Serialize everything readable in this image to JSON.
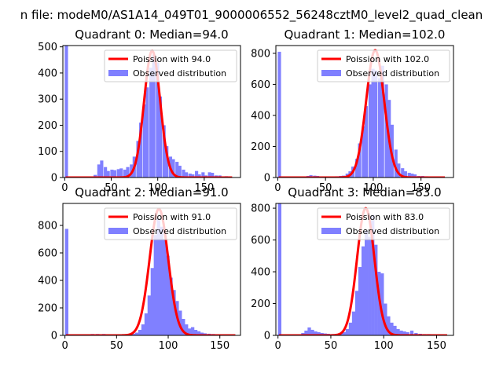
{
  "figure_title": "n file: modeM0/AS1A14_049T01_9000006552_56248cztM0_level2_quad_clean",
  "colors": {
    "observed": "#8080ff",
    "poisson": "#ff0000"
  },
  "chart_data": [
    {
      "type": "bar",
      "title": "Quadrant 0: Median=94.0",
      "median": 94.0,
      "xlim": [
        -2,
        189
      ],
      "ylim": [
        0,
        505
      ],
      "xticks": [
        0,
        50,
        100,
        150
      ],
      "yticks": [
        0,
        100,
        200,
        300,
        400,
        500
      ],
      "legend": [
        "Poission with 94.0",
        "Observed distribution"
      ],
      "bin_width": 3.5,
      "hist": [
        [
          0,
          505
        ],
        [
          31,
          10
        ],
        [
          35,
          50
        ],
        [
          38,
          65
        ],
        [
          42,
          40
        ],
        [
          45,
          25
        ],
        [
          49,
          30
        ],
        [
          52,
          28
        ],
        [
          56,
          32
        ],
        [
          59,
          35
        ],
        [
          63,
          30
        ],
        [
          66,
          40
        ],
        [
          70,
          50
        ],
        [
          73,
          80
        ],
        [
          77,
          140
        ],
        [
          80,
          210
        ],
        [
          84,
          280
        ],
        [
          87,
          345
        ],
        [
          91,
          420
        ],
        [
          94,
          470
        ],
        [
          98,
          440
        ],
        [
          101,
          310
        ],
        [
          105,
          200
        ],
        [
          108,
          120
        ],
        [
          112,
          80
        ],
        [
          115,
          70
        ],
        [
          119,
          60
        ],
        [
          122,
          45
        ],
        [
          126,
          30
        ],
        [
          129,
          20
        ],
        [
          133,
          15
        ],
        [
          136,
          12
        ],
        [
          140,
          25
        ],
        [
          143,
          12
        ],
        [
          147,
          20
        ],
        [
          150,
          8
        ],
        [
          154,
          20
        ],
        [
          157,
          18
        ],
        [
          161,
          8
        ],
        [
          165,
          8
        ],
        [
          172,
          5
        ]
      ],
      "poisson": {
        "mean": 94.0,
        "sd": 8.6,
        "peak": 485,
        "xmin": 1,
        "xmax": 180
      }
    },
    {
      "type": "bar",
      "title": "Quadrant 1: Median=102.0",
      "median": 102.0,
      "xlim": [
        -2,
        184
      ],
      "ylim": [
        0,
        850
      ],
      "xticks": [
        0,
        50,
        100,
        150
      ],
      "yticks": [
        0,
        200,
        400,
        600,
        800
      ],
      "legend": [
        "Poission with 102.0",
        "Observed distribution"
      ],
      "bin_width": 3.4,
      "hist": [
        [
          0,
          810
        ],
        [
          30,
          10
        ],
        [
          33,
          15
        ],
        [
          37,
          12
        ],
        [
          40,
          10
        ],
        [
          60,
          8
        ],
        [
          64,
          10
        ],
        [
          67,
          12
        ],
        [
          71,
          25
        ],
        [
          74,
          40
        ],
        [
          77,
          70
        ],
        [
          81,
          120
        ],
        [
          84,
          220
        ],
        [
          88,
          330
        ],
        [
          91,
          460
        ],
        [
          95,
          600
        ],
        [
          98,
          700
        ],
        [
          101,
          690
        ],
        [
          105,
          640
        ],
        [
          108,
          720
        ],
        [
          112,
          600
        ],
        [
          115,
          500
        ],
        [
          118,
          340
        ],
        [
          122,
          180
        ],
        [
          125,
          90
        ],
        [
          129,
          60
        ],
        [
          132,
          40
        ],
        [
          136,
          30
        ],
        [
          139,
          25
        ],
        [
          142,
          20
        ],
        [
          146,
          10
        ],
        [
          150,
          10
        ],
        [
          154,
          8
        ]
      ],
      "poisson": {
        "mean": 102.0,
        "sd": 9.4,
        "peak": 820,
        "xmin": 1,
        "xmax": 175
      }
    },
    {
      "type": "bar",
      "title": "Quadrant 2: Median=91.0",
      "median": 91.0,
      "xlim": [
        -2,
        170
      ],
      "ylim": [
        0,
        960
      ],
      "xticks": [
        0,
        50,
        100,
        150
      ],
      "yticks": [
        0,
        200,
        400,
        600,
        800
      ],
      "legend": [
        "Poission with 91.0",
        "Observed distribution"
      ],
      "bin_width": 3.3,
      "hist": [
        [
          0,
          775
        ],
        [
          25,
          10
        ],
        [
          30,
          10
        ],
        [
          36,
          10
        ],
        [
          40,
          8
        ],
        [
          52,
          8
        ],
        [
          60,
          10
        ],
        [
          65,
          12
        ],
        [
          68,
          20
        ],
        [
          71,
          40
        ],
        [
          74,
          80
        ],
        [
          77,
          160
        ],
        [
          80,
          290
        ],
        [
          83,
          490
        ],
        [
          86,
          730
        ],
        [
          89,
          850
        ],
        [
          92,
          790
        ],
        [
          95,
          700
        ],
        [
          98,
          580
        ],
        [
          101,
          420
        ],
        [
          104,
          330
        ],
        [
          107,
          250
        ],
        [
          110,
          180
        ],
        [
          113,
          120
        ],
        [
          116,
          80
        ],
        [
          119,
          50
        ],
        [
          122,
          60
        ],
        [
          125,
          40
        ],
        [
          128,
          30
        ],
        [
          131,
          20
        ],
        [
          134,
          15
        ],
        [
          138,
          12
        ],
        [
          142,
          10
        ],
        [
          146,
          8
        ],
        [
          150,
          8
        ]
      ],
      "poisson": {
        "mean": 91.0,
        "sd": 9.0,
        "peak": 920,
        "xmin": 1,
        "xmax": 165
      }
    },
    {
      "type": "bar",
      "title": "Quadrant 3: Median=83.0",
      "median": 83.0,
      "xlim": [
        -2,
        166
      ],
      "ylim": [
        0,
        830
      ],
      "xticks": [
        0,
        50,
        100,
        150
      ],
      "yticks": [
        0,
        200,
        400,
        600,
        800
      ],
      "legend": [
        "Poission with 83.0",
        "Observed distribution"
      ],
      "bin_width": 3.2,
      "hist": [
        [
          0,
          830
        ],
        [
          22,
          15
        ],
        [
          25,
          30
        ],
        [
          28,
          50
        ],
        [
          31,
          35
        ],
        [
          34,
          25
        ],
        [
          37,
          20
        ],
        [
          40,
          15
        ],
        [
          43,
          12
        ],
        [
          46,
          10
        ],
        [
          50,
          8
        ],
        [
          54,
          10
        ],
        [
          58,
          12
        ],
        [
          61,
          20
        ],
        [
          64,
          40
        ],
        [
          67,
          80
        ],
        [
          70,
          150
        ],
        [
          73,
          280
        ],
        [
          76,
          430
        ],
        [
          79,
          560
        ],
        [
          82,
          660
        ],
        [
          85,
          620
        ],
        [
          88,
          760
        ],
        [
          91,
          570
        ],
        [
          94,
          400
        ],
        [
          97,
          390
        ],
        [
          100,
          200
        ],
        [
          103,
          120
        ],
        [
          106,
          80
        ],
        [
          109,
          60
        ],
        [
          112,
          40
        ],
        [
          115,
          30
        ],
        [
          118,
          25
        ],
        [
          121,
          20
        ],
        [
          125,
          30
        ],
        [
          129,
          15
        ],
        [
          133,
          10
        ],
        [
          137,
          8
        ],
        [
          141,
          8
        ],
        [
          145,
          6
        ]
      ],
      "poisson": {
        "mean": 83.0,
        "sd": 8.2,
        "peak": 800,
        "xmin": 1,
        "xmax": 160
      }
    }
  ]
}
